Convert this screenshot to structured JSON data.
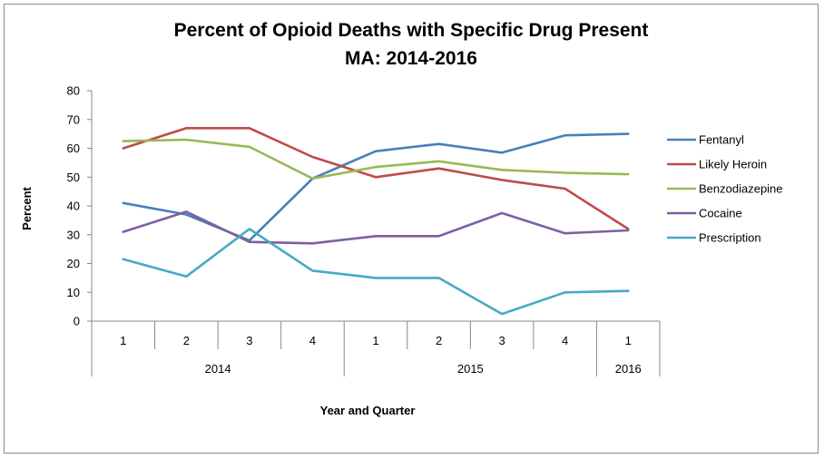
{
  "chart_data": {
    "type": "line",
    "title": "Percent of Opioid Deaths with Specific Drug Present",
    "subtitle": "MA: 2014-2016",
    "xlabel": "Year and Quarter",
    "ylabel": "Percent",
    "ylim": [
      0,
      80
    ],
    "yticks": [
      0,
      10,
      20,
      30,
      40,
      50,
      60,
      70,
      80
    ],
    "categories": [
      "1",
      "2",
      "3",
      "4",
      "1",
      "2",
      "3",
      "4",
      "1"
    ],
    "groups": [
      {
        "label": "2014",
        "start": 0,
        "end": 3
      },
      {
        "label": "2015",
        "start": 4,
        "end": 7
      },
      {
        "label": "2016",
        "start": 8,
        "end": 8
      }
    ],
    "legend_position": "right",
    "grid": false,
    "series": [
      {
        "name": "Fentanyl",
        "color": "#4a7ebb",
        "values": [
          41,
          37,
          28,
          49.5,
          59,
          61.5,
          58.5,
          64.5,
          65
        ]
      },
      {
        "name": "Likely Heroin",
        "color": "#be4b48",
        "values": [
          60,
          67,
          67,
          57,
          50,
          53,
          49,
          46,
          32
        ]
      },
      {
        "name": "Benzodiazepine",
        "color": "#98b954",
        "values": [
          62.5,
          63,
          60.5,
          49.5,
          53.5,
          55.5,
          52.5,
          51.5,
          51
        ]
      },
      {
        "name": "Cocaine",
        "color": "#7d60a0",
        "values": [
          31,
          38,
          27.5,
          27,
          29.5,
          29.5,
          37.5,
          30.5,
          31.5
        ]
      },
      {
        "name": "Prescription",
        "color": "#46aac5",
        "values": [
          21.5,
          15.5,
          32,
          17.5,
          15,
          15,
          2.5,
          10,
          10.5
        ]
      }
    ]
  }
}
